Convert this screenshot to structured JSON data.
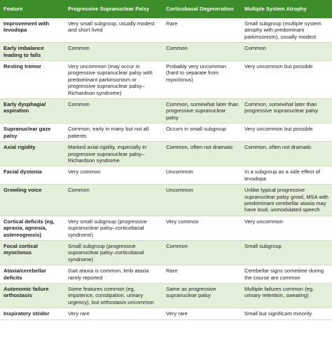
{
  "table": {
    "headers": [
      "Feature",
      "Progressive Supranuclear Palsy",
      "Corticobasal Degeneration",
      "Multiple System Atrophy"
    ],
    "rows": [
      [
        "Improvement with levodopa",
        "Very small subgroup, usually modest and short lived",
        "Rare",
        "Small subgroup (multiple system atrophy with predominant parkinsonism), usually modest"
      ],
      [
        "Early imbalance leading to falls",
        "Common",
        "Common",
        "Common"
      ],
      [
        "Resting tremor",
        "Very uncommon (may occur in progressive supranuclear palsy with predominant parkinsonism or progressive supranuclear palsy–Richardson syndrome)",
        "Probably very uncommon (hard to separate from myoclonus)",
        "Very uncommon but possible"
      ],
      [
        "Early dysphagia/ aspiration",
        "Common",
        "Common, somewhat later than progressive supranuclear palsy",
        "Common, somewhat later than progressive supranuclear palsy"
      ],
      [
        "Supranuclear gaze palsy",
        "Common; early in many but not all patients",
        "Occurs in small subgroup",
        "Very uncommon but possible"
      ],
      [
        "Axial rigidity",
        "Marked axial rigidity, especially in progressive supranuclear palsy–Richardson syndrome",
        "Common, often not dramatic",
        "Common, often not dramatic"
      ],
      [
        "Facial dystonia",
        "Very common",
        "Uncommon",
        "In a subgroup as a side effect of levodopa"
      ],
      [
        "Growling voice",
        "Common",
        "Uncommon",
        "Unlike typical progressive supranuclear palsy growl, MSA with predominant cerebellar ataxia may have loud, unmodulated speech"
      ],
      [
        "Cortical deficits (eg, apraxia, agnosia, astereognosis)",
        "Very small subgroup (progressive supranuclear palsy–corticobasal syndrome)",
        "Very common",
        "Very uncommon"
      ],
      [
        "Focal cortical myoclonus",
        "Small subgroup (progressive supranuclear palsy–corticobasal syndrome)",
        "Common",
        "Small subgroup"
      ],
      [
        "Ataxia/cerebellar deficits",
        "Gait ataxia is common, limb ataxia rarely reported",
        "Rare",
        "Cerebellar signs sometime during the course are common"
      ],
      [
        "Autonomic failure orthostasis",
        "Some features common (eg, impotence, constipation, urinary urgency), but orthostasis uncommon",
        "Same as progressive supranuclear palsy",
        "Multiple failures common (eg, urinary retention, sweating)"
      ],
      [
        "Inspiratory stridor",
        "Very rare",
        "Very rare",
        "Small but significant minority"
      ]
    ]
  }
}
